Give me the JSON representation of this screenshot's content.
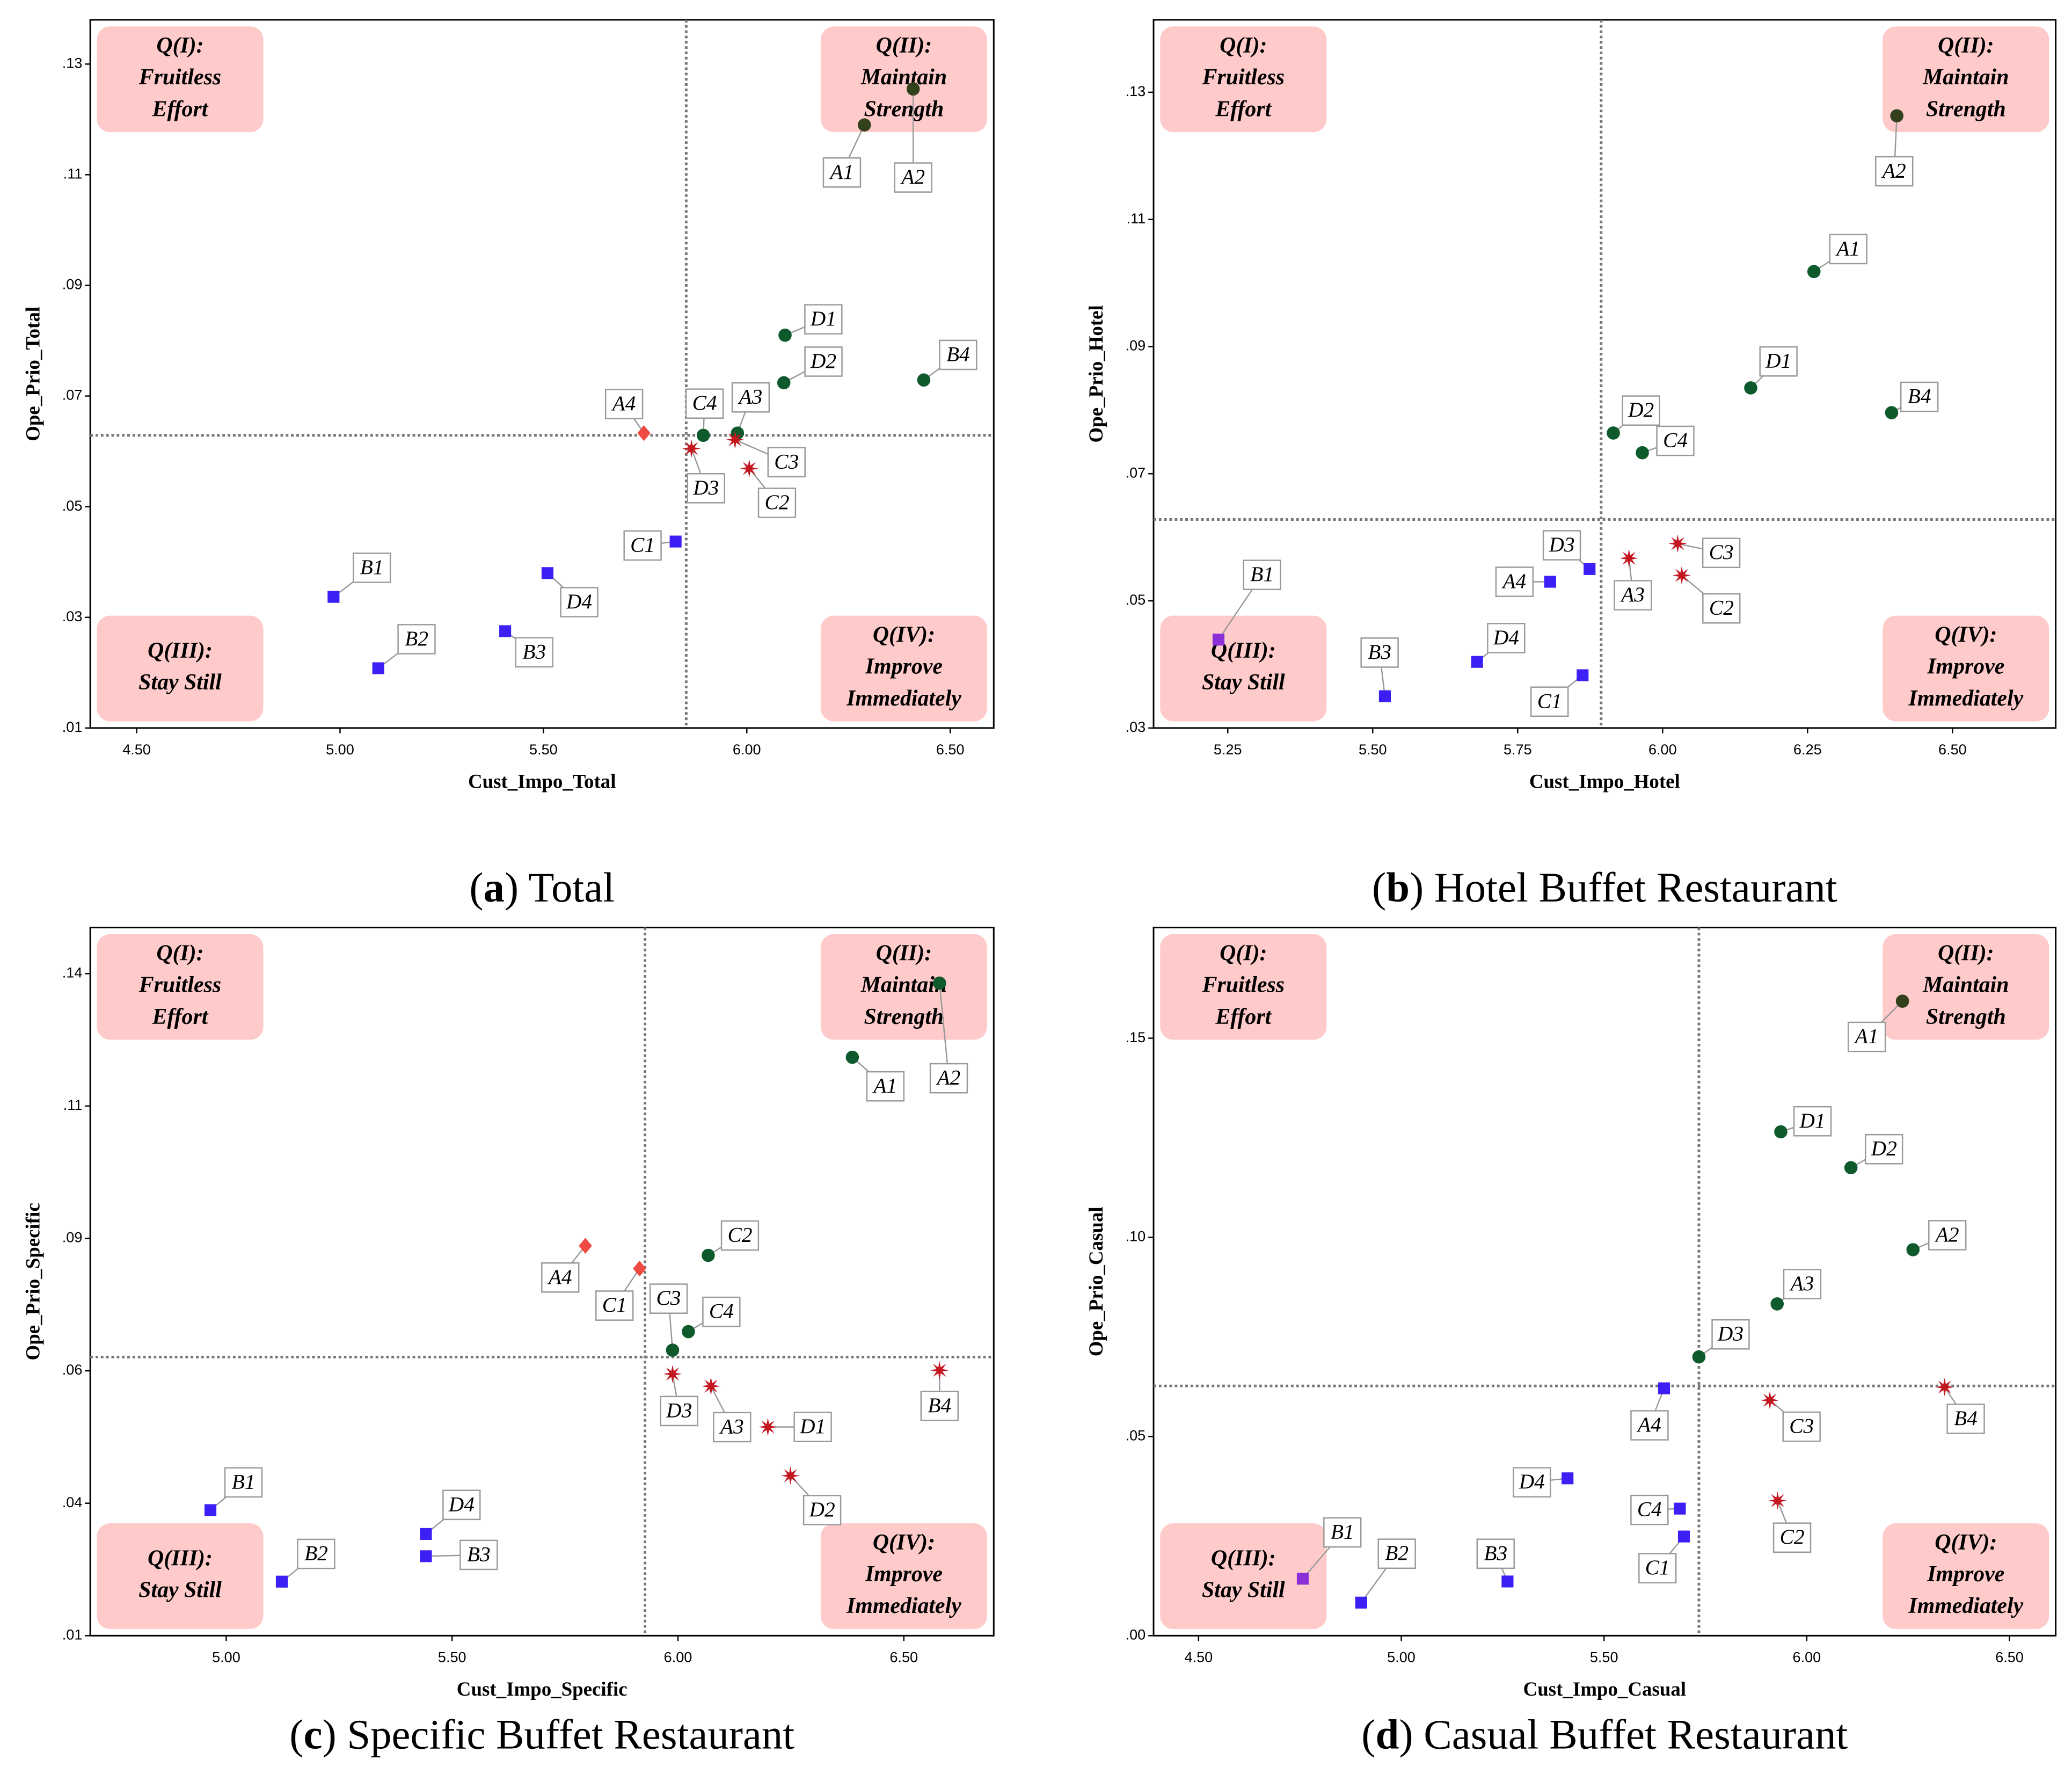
{
  "chart_data": [
    {
      "type": "scatter",
      "caption": [
        "(",
        "a",
        ") Total"
      ],
      "xlabel": "Cust_Impo_Total",
      "ylabel": "Ope_Prio_Total",
      "xlim": [
        4.386,
        6.607
      ],
      "ylim": [
        0.01,
        0.138
      ],
      "xticks": [
        {
          "value": 4.5,
          "label": "4.50"
        },
        {
          "value": 5.0,
          "label": "5.00"
        },
        {
          "value": 5.5,
          "label": "5.50"
        },
        {
          "value": 6.0,
          "label": "6.00"
        },
        {
          "value": 6.5,
          "label": "6.50"
        }
      ],
      "yticks": [
        {
          "value": 0.01,
          "label": ".01"
        },
        {
          "value": 0.03,
          "label": ".03"
        },
        {
          "value": 0.05,
          "label": ".05"
        },
        {
          "value": 0.07,
          "label": ".07"
        },
        {
          "value": 0.09,
          "label": ".09"
        },
        {
          "value": 0.11,
          "label": ".11"
        },
        {
          "value": 0.13,
          "label": ".13"
        }
      ],
      "vline": 5.851,
      "hline": 0.0629,
      "quadrants": [
        [
          "Q(I):",
          "Fruitless",
          "Effort"
        ],
        [
          "Q(II):",
          "Maintain",
          "Strength"
        ],
        [
          "Q(III):",
          "Stay Still"
        ],
        [
          "Q(IV):",
          "Improve",
          "Immediately"
        ]
      ],
      "marker_colors": {
        "circle": "#0e5a2c",
        "circle-dark": "#33401c",
        "square": "#3b1ff5",
        "square-purple": "#8b2fd8",
        "diamond": "#ef4b43",
        "star": "#c3161f"
      },
      "points": [
        {
          "label": "A1",
          "x": 6.289,
          "y": 0.119,
          "marker": "circle-dark"
        },
        {
          "label": "A2",
          "x": 6.409,
          "y": 0.1255,
          "marker": "circle-dark"
        },
        {
          "label": "D1",
          "x": 6.094,
          "y": 0.081,
          "marker": "circle"
        },
        {
          "label": "D2",
          "x": 6.091,
          "y": 0.0724,
          "marker": "circle"
        },
        {
          "label": "B4",
          "x": 6.435,
          "y": 0.0729,
          "marker": "circle"
        },
        {
          "label": "A3",
          "x": 5.977,
          "y": 0.0633,
          "marker": "circle"
        },
        {
          "label": "C4",
          "x": 5.893,
          "y": 0.0629,
          "marker": "circle"
        },
        {
          "label": "A4",
          "x": 5.747,
          "y": 0.0633,
          "marker": "diamond"
        },
        {
          "label": "D3",
          "x": 5.864,
          "y": 0.0605,
          "marker": "star"
        },
        {
          "label": "C3",
          "x": 5.971,
          "y": 0.0621,
          "marker": "star"
        },
        {
          "label": "C2",
          "x": 6.006,
          "y": 0.0569,
          "marker": "star"
        },
        {
          "label": "C1",
          "x": 5.825,
          "y": 0.0437,
          "marker": "square"
        },
        {
          "label": "D4",
          "x": 5.51,
          "y": 0.038,
          "marker": "square"
        },
        {
          "label": "B1",
          "x": 4.984,
          "y": 0.0337,
          "marker": "square"
        },
        {
          "label": "B3",
          "x": 5.406,
          "y": 0.0275,
          "marker": "square"
        },
        {
          "label": "B2",
          "x": 5.094,
          "y": 0.0208,
          "marker": "square"
        }
      ]
    },
    {
      "type": "scatter",
      "caption": [
        "(",
        "b",
        ") Hotel Buffet Restaurant"
      ],
      "xlabel": "Cust_Impo_Hotel",
      "ylabel": "Ope_Prio_Hotel",
      "xlim": [
        5.122,
        6.678
      ],
      "ylim": [
        0.03,
        0.1414
      ],
      "xticks": [
        {
          "value": 5.25,
          "label": "5.25"
        },
        {
          "value": 5.5,
          "label": "5.50"
        },
        {
          "value": 5.75,
          "label": "5.75"
        },
        {
          "value": 6.0,
          "label": "6.00"
        },
        {
          "value": 6.25,
          "label": "6.25"
        },
        {
          "value": 6.5,
          "label": "6.50"
        }
      ],
      "yticks": [
        {
          "value": 0.03,
          "label": ".03"
        },
        {
          "value": 0.05,
          "label": ".05"
        },
        {
          "value": 0.07,
          "label": ".07"
        },
        {
          "value": 0.09,
          "label": ".09"
        },
        {
          "value": 0.11,
          "label": ".11"
        },
        {
          "value": 0.13,
          "label": ".13"
        }
      ],
      "vline": 5.894,
      "hline": 0.0628,
      "quadrants": [
        [
          "Q(I):",
          "Fruitless",
          "Effort"
        ],
        [
          "Q(II):",
          "Maintain",
          "Strength"
        ],
        [
          "Q(III):",
          "Stay Still"
        ],
        [
          "Q(IV):",
          "Improve",
          "Immediately"
        ]
      ],
      "marker_colors": {
        "circle": "#0e5a2c",
        "circle-dark": "#33401c",
        "square": "#3b1ff5",
        "square-purple": "#8b2fd8",
        "diamond": "#ef4b43",
        "star": "#c3161f"
      },
      "points": [
        {
          "label": "A2",
          "x": 6.404,
          "y": 0.1263,
          "marker": "circle-dark"
        },
        {
          "label": "A1",
          "x": 6.261,
          "y": 0.1018,
          "marker": "circle"
        },
        {
          "label": "D1",
          "x": 6.152,
          "y": 0.0835,
          "marker": "circle"
        },
        {
          "label": "B4",
          "x": 6.395,
          "y": 0.0796,
          "marker": "circle"
        },
        {
          "label": "D2",
          "x": 5.915,
          "y": 0.0764,
          "marker": "circle"
        },
        {
          "label": "C4",
          "x": 5.965,
          "y": 0.0733,
          "marker": "circle"
        },
        {
          "label": "C3",
          "x": 6.026,
          "y": 0.059,
          "marker": "star"
        },
        {
          "label": "A3",
          "x": 5.942,
          "y": 0.0567,
          "marker": "star"
        },
        {
          "label": "C2",
          "x": 6.033,
          "y": 0.054,
          "marker": "star"
        },
        {
          "label": "D3",
          "x": 5.874,
          "y": 0.055,
          "marker": "square"
        },
        {
          "label": "A4",
          "x": 5.806,
          "y": 0.053,
          "marker": "square"
        },
        {
          "label": "B1",
          "x": 5.234,
          "y": 0.0439,
          "marker": "square-purple"
        },
        {
          "label": "D4",
          "x": 5.68,
          "y": 0.0404,
          "marker": "square"
        },
        {
          "label": "C1",
          "x": 5.862,
          "y": 0.0383,
          "marker": "square"
        },
        {
          "label": "B3",
          "x": 5.521,
          "y": 0.035,
          "marker": "square"
        }
      ]
    },
    {
      "type": "scatter",
      "caption": [
        "(",
        "c",
        ") Specific Buffet Restaurant"
      ],
      "xlabel": "Cust_Impo_Specific",
      "ylabel": "Ope_Prio_Specific",
      "xlim": [
        4.699,
        6.699
      ],
      "ylim": [
        0.01,
        0.1437
      ],
      "xticks": [
        {
          "value": 5.0,
          "label": "5.00"
        },
        {
          "value": 5.5,
          "label": "5.50"
        },
        {
          "value": 6.0,
          "label": "6.00"
        },
        {
          "value": 6.5,
          "label": "6.50"
        }
      ],
      "yticks": [
        {
          "value": 0.01,
          "label": ".01"
        },
        {
          "value": 0.035,
          "label": ".04"
        },
        {
          "value": 0.06,
          "label": ".06"
        },
        {
          "value": 0.085,
          "label": ".09"
        },
        {
          "value": 0.11,
          "label": ".11"
        },
        {
          "value": 0.135,
          "label": ".14"
        }
      ],
      "vline": 5.927,
      "hline": 0.0626,
      "quadrants": [
        [
          "Q(I):",
          "Fruitless",
          "Effort"
        ],
        [
          "Q(II):",
          "Maintain",
          "Strength"
        ],
        [
          "Q(III):",
          "Stay Still"
        ],
        [
          "Q(IV):",
          "Improve",
          "Immediately"
        ]
      ],
      "marker_colors": {
        "circle": "#0e5a2c",
        "circle-dark": "#33401c",
        "square": "#3b1ff5",
        "square-purple": "#8b2fd8",
        "diamond": "#ef4b43",
        "star": "#c3161f"
      },
      "points": [
        {
          "label": "A2",
          "x": 6.579,
          "y": 0.1332,
          "marker": "circle"
        },
        {
          "label": "A1",
          "x": 6.386,
          "y": 0.1192,
          "marker": "circle"
        },
        {
          "label": "C2",
          "x": 6.067,
          "y": 0.0818,
          "marker": "circle"
        },
        {
          "label": "C4",
          "x": 6.023,
          "y": 0.0674,
          "marker": "circle"
        },
        {
          "label": "C3",
          "x": 5.988,
          "y": 0.0639,
          "marker": "circle"
        },
        {
          "label": "A4",
          "x": 5.795,
          "y": 0.0836,
          "marker": "diamond"
        },
        {
          "label": "C1",
          "x": 5.915,
          "y": 0.0793,
          "marker": "diamond"
        },
        {
          "label": "B4",
          "x": 6.579,
          "y": 0.0601,
          "marker": "star"
        },
        {
          "label": "D3",
          "x": 5.988,
          "y": 0.0594,
          "marker": "star"
        },
        {
          "label": "A3",
          "x": 6.073,
          "y": 0.0571,
          "marker": "star"
        },
        {
          "label": "D1",
          "x": 6.199,
          "y": 0.0494,
          "marker": "star"
        },
        {
          "label": "D2",
          "x": 6.249,
          "y": 0.0402,
          "marker": "star"
        },
        {
          "label": "B1",
          "x": 4.965,
          "y": 0.0337,
          "marker": "square"
        },
        {
          "label": "D4",
          "x": 5.442,
          "y": 0.0292,
          "marker": "square"
        },
        {
          "label": "B3",
          "x": 5.442,
          "y": 0.025,
          "marker": "square"
        },
        {
          "label": "B2",
          "x": 5.123,
          "y": 0.0202,
          "marker": "square"
        }
      ]
    },
    {
      "type": "scatter",
      "caption": [
        "(",
        "d",
        ") Casual Buffet Restaurant"
      ],
      "xlabel": "Cust_Impo_Casual",
      "ylabel": "Ope_Prio_Casual",
      "xlim": [
        4.389,
        6.614
      ],
      "ylim": [
        0,
        0.1778
      ],
      "xticks": [
        {
          "value": 4.5,
          "label": "4.50"
        },
        {
          "value": 5.0,
          "label": "5.00"
        },
        {
          "value": 5.5,
          "label": "5.50"
        },
        {
          "value": 6.0,
          "label": "6.00"
        },
        {
          "value": 6.5,
          "label": "6.50"
        }
      ],
      "yticks": [
        {
          "value": 0,
          "label": ".00"
        },
        {
          "value": 0.05,
          "label": ".05"
        },
        {
          "value": 0.1,
          "label": ".10"
        },
        {
          "value": 0.15,
          "label": ".15"
        }
      ],
      "vline": 5.734,
      "hline": 0.0627,
      "quadrants": [
        [
          "Q(I):",
          "Fruitless",
          "Effort"
        ],
        [
          "Q(II):",
          "Maintain",
          "Strength"
        ],
        [
          "Q(III):",
          "Stay Still"
        ],
        [
          "Q(IV):",
          "Improve",
          "Immediately"
        ]
      ],
      "marker_colors": {
        "circle": "#0e5a2c",
        "circle-dark": "#33401c",
        "square": "#3b1ff5",
        "square-purple": "#8b2fd8",
        "diamond": "#ef4b43",
        "star": "#c3161f"
      },
      "points": [
        {
          "label": "A1",
          "x": 6.236,
          "y": 0.1593,
          "marker": "circle-dark"
        },
        {
          "label": "D1",
          "x": 5.936,
          "y": 0.1265,
          "marker": "circle"
        },
        {
          "label": "D2",
          "x": 6.109,
          "y": 0.1175,
          "marker": "circle"
        },
        {
          "label": "A2",
          "x": 6.262,
          "y": 0.0969,
          "marker": "circle"
        },
        {
          "label": "A3",
          "x": 5.927,
          "y": 0.0833,
          "marker": "circle"
        },
        {
          "label": "D3",
          "x": 5.734,
          "y": 0.07,
          "marker": "circle"
        },
        {
          "label": "C3",
          "x": 5.909,
          "y": 0.0591,
          "marker": "star"
        },
        {
          "label": "B4",
          "x": 6.34,
          "y": 0.0624,
          "marker": "star"
        },
        {
          "label": "C2",
          "x": 5.928,
          "y": 0.0339,
          "marker": "star"
        },
        {
          "label": "A4",
          "x": 5.648,
          "y": 0.0621,
          "marker": "square"
        },
        {
          "label": "D4",
          "x": 5.41,
          "y": 0.0395,
          "marker": "square"
        },
        {
          "label": "C4",
          "x": 5.687,
          "y": 0.0319,
          "marker": "square"
        },
        {
          "label": "C1",
          "x": 5.697,
          "y": 0.0249,
          "marker": "square"
        },
        {
          "label": "B3",
          "x": 5.262,
          "y": 0.0136,
          "marker": "square"
        },
        {
          "label": "B1",
          "x": 4.757,
          "y": 0.0143,
          "marker": "square-purple"
        },
        {
          "label": "B2",
          "x": 4.901,
          "y": 0.0083,
          "marker": "square"
        }
      ]
    }
  ]
}
